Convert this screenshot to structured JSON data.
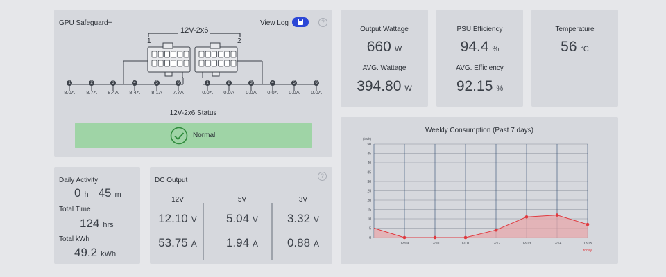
{
  "gpu": {
    "title": "GPU Safeguard+",
    "view_log": "View Log",
    "connector_label": "12V-2x6",
    "connector_1": "1",
    "connector_2": "2",
    "channels": [
      {
        "num": "1",
        "amp": "8.0A"
      },
      {
        "num": "2",
        "amp": "8.7A"
      },
      {
        "num": "3",
        "amp": "8.4A"
      },
      {
        "num": "4",
        "amp": "8.4A"
      },
      {
        "num": "5",
        "amp": "8.1A"
      },
      {
        "num": "6",
        "amp": "7.7A"
      },
      {
        "num": "1",
        "amp": "0.0A"
      },
      {
        "num": "2",
        "amp": "0.0A"
      },
      {
        "num": "3",
        "amp": "0.0A"
      },
      {
        "num": "4",
        "amp": "0.0A"
      },
      {
        "num": "5",
        "amp": "0.0A"
      },
      {
        "num": "6",
        "amp": "0.0A"
      }
    ],
    "status_title": "12V-2x6 Status",
    "status": "Normal",
    "status_color": "#9fd4a6"
  },
  "output": {
    "label": "Output Wattage",
    "value": "660",
    "unit": "W",
    "avg_label": "AVG. Wattage",
    "avg_value": "394.80",
    "avg_unit": "W"
  },
  "efficiency": {
    "label": "PSU Efficiency",
    "value": "94.4",
    "unit": "%",
    "avg_label": "AVG. Efficiency",
    "avg_value": "92.15",
    "avg_unit": "%"
  },
  "temperature": {
    "label": "Temperature",
    "value": "56",
    "unit": "°C"
  },
  "activity": {
    "label": "Daily Activity",
    "hours": "0",
    "h_unit": "h",
    "minutes": "45",
    "m_unit": "m",
    "total_time_label": "Total Time",
    "total_time": "124",
    "total_time_unit": "hrs",
    "total_kwh_label": "Total kWh",
    "total_kwh": "49.2",
    "total_kwh_unit": "kWh"
  },
  "dc": {
    "title": "DC Output",
    "cols": [
      {
        "head": "12V",
        "v": "12.10",
        "vu": "V",
        "a": "53.75",
        "au": "A"
      },
      {
        "head": "5V",
        "v": "5.04",
        "vu": "V",
        "a": "1.94",
        "au": "A"
      },
      {
        "head": "3V",
        "v": "3.32",
        "vu": "V",
        "a": "0.88",
        "au": "A"
      }
    ]
  },
  "chart_data": {
    "type": "area",
    "title": "Weekly Consumption (Past 7 days)",
    "ylabel": "(kWh)",
    "yticks": [
      "0",
      "5",
      "10",
      "15",
      "20",
      "25",
      "30",
      "35",
      "40",
      "45",
      "50"
    ],
    "ylim": [
      0,
      50
    ],
    "categories": [
      "12/09",
      "12/10",
      "12/11",
      "12/12",
      "12/13",
      "12/14",
      "12/15"
    ],
    "today_label": "today",
    "start_value": 5,
    "values": [
      0,
      0,
      0,
      4,
      11,
      12,
      7
    ],
    "line_color": "#e0393e",
    "fill_color": "#e7a8ab"
  }
}
